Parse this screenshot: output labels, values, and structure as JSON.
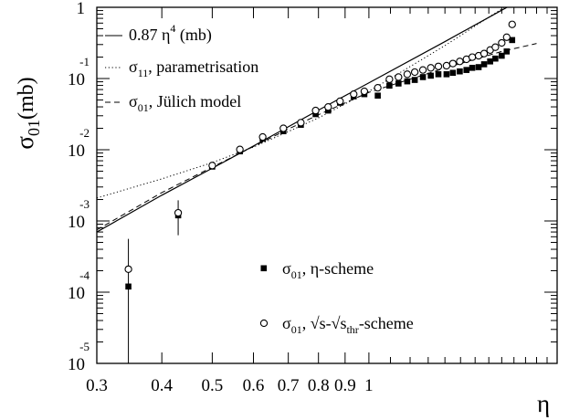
{
  "chart_data": {
    "type": "scatter",
    "xlabel": "η",
    "ylabel": {
      "base": "σ",
      "sub": "01",
      "unit": "(mb)"
    },
    "xscale": "log",
    "yscale": "log",
    "xlim": [
      0.3,
      2.3
    ],
    "ylim": [
      1e-05,
      1
    ],
    "x_ticks": [
      {
        "value": 0.3,
        "label": "0.3"
      },
      {
        "value": 0.4,
        "label": "0.4"
      },
      {
        "value": 0.5,
        "label": "0.5"
      },
      {
        "value": 0.6,
        "label": "0.6"
      },
      {
        "value": 0.7,
        "label": "0.7"
      },
      {
        "value": 0.8,
        "label": "0.8"
      },
      {
        "value": 0.9,
        "label": "0.9"
      },
      {
        "value": 1.0,
        "label": "1"
      }
    ],
    "y_ticks": [
      {
        "value": 1,
        "mantissa": "1",
        "exp": ""
      },
      {
        "value": 0.1,
        "mantissa": "10",
        "exp": "-1"
      },
      {
        "value": 0.01,
        "mantissa": "10",
        "exp": "-2"
      },
      {
        "value": 0.001,
        "mantissa": "10",
        "exp": "-3"
      },
      {
        "value": 0.0001,
        "mantissa": "10",
        "exp": "-4"
      },
      {
        "value": 1e-05,
        "mantissa": "10",
        "exp": "-5"
      }
    ],
    "legend_top": {
      "position": "top-left",
      "entries": [
        {
          "style": "solid",
          "prefix": "0.87 η",
          "sup": "4",
          "suffix": " (mb)"
        },
        {
          "style": "dotted",
          "prefix": "σ",
          "sub": "11",
          "suffix": ", parametrisation"
        },
        {
          "style": "dashed",
          "prefix": "σ",
          "sub": "01",
          "suffix": ", Jülich model"
        }
      ]
    },
    "legend_bottom": {
      "position": "bottom-right",
      "entries": [
        {
          "marker": "filled-square",
          "prefix": "σ",
          "sub": "01",
          "suffix": ", η-scheme"
        },
        {
          "marker": "open-circle",
          "prefix": "σ",
          "sub": "01",
          "suffix": ", √s-√s",
          "sub2": "thr",
          "suffix2": "-scheme"
        }
      ]
    },
    "series": [
      {
        "name": "0.87 η4 (mb)",
        "kind": "line",
        "style": "solid",
        "x": [
          0.3,
          0.4,
          0.5,
          0.6,
          0.7,
          0.8,
          1.0,
          1.4,
          1.8,
          2.2
        ],
        "y": [
          0.0007,
          0.0023,
          0.0055,
          0.0113,
          0.021,
          0.036,
          0.087,
          0.33,
          0.91,
          2.04
        ]
      },
      {
        "name": "σ11, parametrisation",
        "kind": "line",
        "style": "dotted",
        "x": [
          0.3,
          0.4,
          0.5,
          0.6,
          0.7,
          0.8,
          1.0,
          1.4,
          1.8,
          2.2
        ],
        "y": [
          0.0021,
          0.0039,
          0.0066,
          0.0109,
          0.018,
          0.028,
          0.066,
          0.29,
          0.95,
          2.6
        ]
      },
      {
        "name": "σ01, Jülich model",
        "kind": "line",
        "style": "dashed",
        "x": [
          0.3,
          0.4,
          0.5,
          0.6,
          0.7,
          0.8,
          1.0,
          1.4,
          1.8,
          2.1
        ],
        "y": [
          0.00075,
          0.0025,
          0.0057,
          0.0111,
          0.0195,
          0.031,
          0.064,
          0.14,
          0.24,
          0.31
        ]
      },
      {
        "name": "σ01, η-scheme",
        "kind": "points",
        "marker": "filled-square",
        "x": [
          0.345,
          0.43,
          0.5,
          0.565,
          0.625,
          0.685,
          0.74,
          0.79,
          0.835,
          0.88,
          0.935,
          0.98,
          1.04,
          1.095,
          1.14,
          1.185,
          1.225,
          1.27,
          1.315,
          1.36,
          1.41,
          1.45,
          1.495,
          1.54,
          1.58,
          1.625,
          1.665,
          1.71,
          1.75,
          1.8,
          1.84,
          1.885
        ],
        "y": [
          0.00012,
          0.0012,
          0.0058,
          0.0095,
          0.0143,
          0.0182,
          0.0224,
          0.0316,
          0.0355,
          0.0457,
          0.0562,
          0.0603,
          0.0575,
          0.0794,
          0.0851,
          0.0912,
          0.0955,
          0.1047,
          0.1096,
          0.1148,
          0.1148,
          0.1202,
          0.1259,
          0.1318,
          0.1413,
          0.1445,
          0.1585,
          0.1738,
          0.1905,
          0.2089,
          0.2399,
          0.3467
        ]
      },
      {
        "name": "σ01, √s-√sthr-scheme",
        "kind": "points",
        "marker": "open-circle",
        "x": [
          0.345,
          0.43,
          0.5,
          0.565,
          0.625,
          0.685,
          0.74,
          0.79,
          0.835,
          0.88,
          0.935,
          0.98,
          1.04,
          1.095,
          1.14,
          1.185,
          1.225,
          1.27,
          1.315,
          1.36,
          1.41,
          1.45,
          1.495,
          1.54,
          1.58,
          1.625,
          1.665,
          1.71,
          1.75,
          1.8,
          1.84,
          1.885
        ],
        "y": [
          0.00021,
          0.0013,
          0.006,
          0.0101,
          0.0151,
          0.02,
          0.024,
          0.0355,
          0.0398,
          0.0479,
          0.0603,
          0.0661,
          0.0741,
          0.0977,
          0.1047,
          0.1148,
          0.123,
          0.1318,
          0.1413,
          0.1479,
          0.1514,
          0.1622,
          0.1738,
          0.1862,
          0.1995,
          0.2089,
          0.2239,
          0.2512,
          0.2754,
          0.3162,
          0.3802,
          0.5754
        ]
      }
    ],
    "error_bars": [
      {
        "x": 0.345,
        "low": 1e-05,
        "high": 0.00056
      },
      {
        "x": 0.43,
        "low": 0.00063,
        "high": 0.00195
      }
    ]
  }
}
